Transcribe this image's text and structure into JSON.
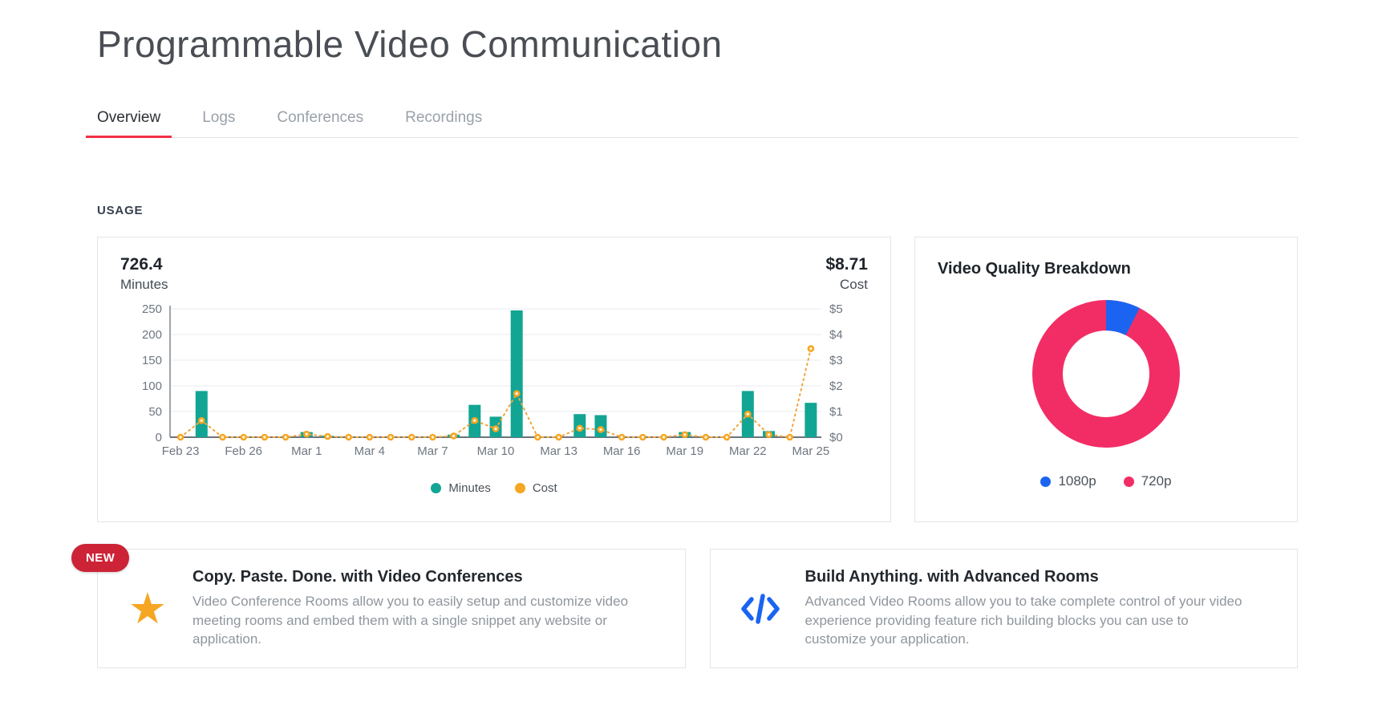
{
  "page": {
    "title": "Programmable Video Communication"
  },
  "tabs": [
    {
      "label": "Overview",
      "active": true
    },
    {
      "label": "Logs",
      "active": false
    },
    {
      "label": "Conferences",
      "active": false
    },
    {
      "label": "Recordings",
      "active": false
    }
  ],
  "usage": {
    "section_label": "USAGE",
    "minutes_value": "726.4",
    "minutes_label": "Minutes",
    "cost_value": "$8.71",
    "cost_label": "Cost"
  },
  "colors": {
    "accent_red": "#F22F46",
    "badge_red": "#CD2337",
    "teal": "#12A594",
    "yellow": "#F5A623",
    "yellow_line": "#F2A53C",
    "blue": "#1B64F2",
    "pink": "#F22D65",
    "grid": "#e9ebf0",
    "axis": "#82888f"
  },
  "chart_data": [
    {
      "type": "bar",
      "subtype": "combo-bar-line",
      "summary": {
        "minutes_total": "726.4",
        "cost_total": "$8.71"
      },
      "x": [
        "Feb 23",
        "Feb 24",
        "Feb 25",
        "Feb 26",
        "Feb 27",
        "Feb 28",
        "Mar 1",
        "Mar 2",
        "Mar 3",
        "Mar 4",
        "Mar 5",
        "Mar 6",
        "Mar 7",
        "Mar 8",
        "Mar 9",
        "Mar 10",
        "Mar 11",
        "Mar 12",
        "Mar 13",
        "Mar 14",
        "Mar 15",
        "Mar 16",
        "Mar 17",
        "Mar 18",
        "Mar 19",
        "Mar 20",
        "Mar 21",
        "Mar 22",
        "Mar 23",
        "Mar 24",
        "Mar 25"
      ],
      "x_tick_interval": 3,
      "series": [
        {
          "name": "Minutes",
          "type": "bar",
          "axis": "left",
          "color": "#12A594",
          "values": [
            0,
            90,
            0,
            0,
            0,
            0,
            10,
            3,
            0,
            0,
            0,
            0,
            0,
            5,
            63,
            40,
            247,
            0,
            0,
            45,
            43,
            0,
            0,
            0,
            10,
            0,
            0,
            90,
            12,
            0,
            67
          ]
        },
        {
          "name": "Cost",
          "type": "line",
          "style": "dotted",
          "axis": "right",
          "color": "#F5A623",
          "values": [
            0,
            0.65,
            0,
            0,
            0,
            0,
            0.12,
            0.03,
            0,
            0,
            0,
            0,
            0,
            0.05,
            0.65,
            0.33,
            1.7,
            0,
            0,
            0.35,
            0.3,
            0,
            0,
            0,
            0.1,
            0,
            0,
            0.9,
            0.1,
            0,
            3.45
          ]
        }
      ],
      "left_axis": {
        "ticks": [
          0,
          50,
          100,
          150,
          200,
          250
        ],
        "range": [
          0,
          250
        ]
      },
      "right_axis": {
        "ticks": [
          "$0",
          "$1",
          "$2",
          "$3",
          "$4",
          "$5"
        ],
        "range": [
          0,
          5
        ]
      },
      "grid": true,
      "legend_position": "bottom"
    },
    {
      "type": "pie",
      "donut": true,
      "title": "Video Quality Breakdown",
      "labels": [
        "1080p",
        "720p"
      ],
      "values": [
        7.5,
        92.5
      ],
      "values_unit": "%",
      "colors": [
        "#1B64F2",
        "#F22D65"
      ],
      "legend_position": "bottom"
    }
  ],
  "promo_cards": [
    {
      "badge": "NEW",
      "icon": "star-icon",
      "title": "Copy. Paste. Done. with Video Conferences",
      "body": "Video Conference Rooms allow you to easily setup and customize video meeting rooms and embed them with a single snippet any website or application."
    },
    {
      "icon": "code-icon",
      "title": "Build Anything. with Advanced Rooms",
      "body": "Advanced Video Rooms allow you to take complete control of your video experience providing feature rich building blocks you can use to customize your application."
    }
  ]
}
